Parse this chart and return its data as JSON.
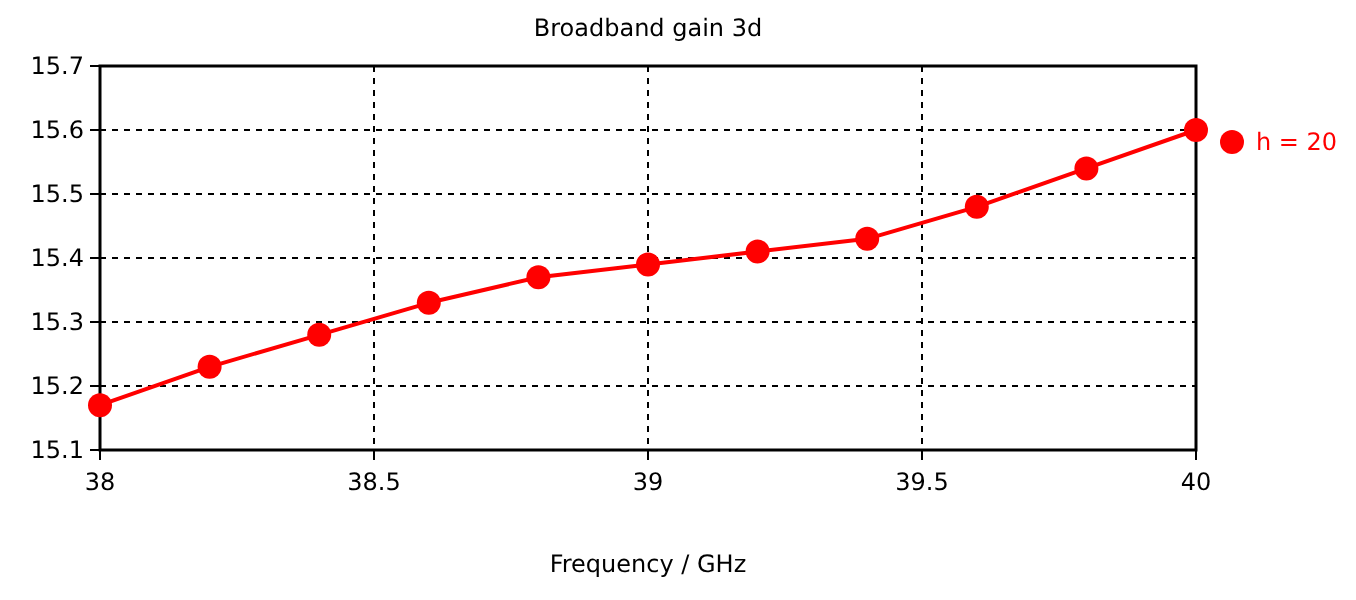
{
  "chart_data": {
    "type": "line",
    "title": "Broadband gain 3d",
    "xlabel": "Frequency / GHz",
    "x": [
      38,
      38.2,
      38.4,
      38.6,
      38.8,
      39,
      39.2,
      39.4,
      39.6,
      39.8,
      40
    ],
    "series": [
      {
        "name": "h = 20",
        "color": "#ff0000",
        "values": [
          15.17,
          15.23,
          15.28,
          15.33,
          15.37,
          15.39,
          15.41,
          15.43,
          15.48,
          15.54,
          15.6
        ]
      }
    ],
    "xlim": [
      38,
      40
    ],
    "xticks": [
      38,
      38.5,
      39,
      39.5,
      40
    ],
    "ylim": [
      15.1,
      15.7
    ],
    "yticks": [
      15.1,
      15.2,
      15.3,
      15.4,
      15.5,
      15.6,
      15.7
    ],
    "grid": true,
    "legend": "top right",
    "marker": "circle",
    "line_style": "solid"
  }
}
